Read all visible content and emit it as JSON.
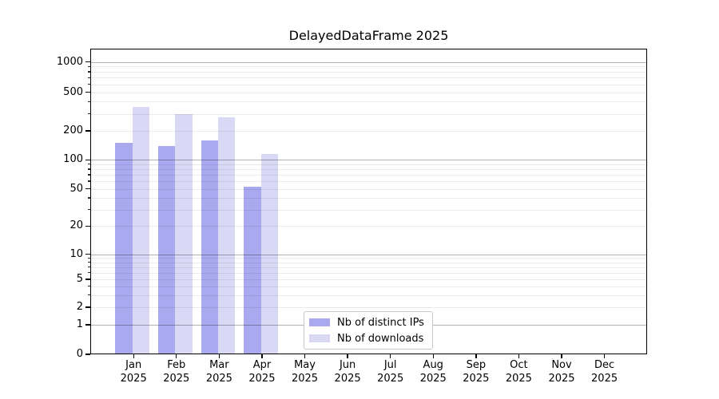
{
  "figure": {
    "title": "DelayedDataFrame 2025"
  },
  "chart_data": {
    "type": "bar",
    "title": "DelayedDataFrame 2025",
    "x": [
      "Jan",
      "Feb",
      "Mar",
      "Apr",
      "May",
      "Jun",
      "Jul",
      "Aug",
      "Sep",
      "Oct",
      "Nov",
      "Dec"
    ],
    "x_sublabel": "2025",
    "series": [
      {
        "name": "Nb of distinct IPs",
        "color": "#a9a9f0",
        "values": [
          150,
          140,
          160,
          52,
          null,
          null,
          null,
          null,
          null,
          null,
          null,
          null
        ]
      },
      {
        "name": "Nb of downloads",
        "color": "#d9d9f6",
        "values": [
          350,
          295,
          275,
          115,
          null,
          null,
          null,
          null,
          null,
          null,
          null,
          null
        ]
      }
    ],
    "y_ticks": [
      0,
      1,
      2,
      5,
      10,
      20,
      50,
      100,
      200,
      500,
      1000
    ],
    "y_major_ticks": [
      1,
      10,
      100,
      1000
    ],
    "y_scale": "asinh-log-like (linear segment between 0 and 1)",
    "ylim": [
      0,
      1200
    ],
    "grid": {
      "orientation": "horizontal",
      "major": true,
      "minor": true,
      "drawn_above_bars": true
    },
    "legend": {
      "position": "lower center",
      "bordered": true
    },
    "colors": {
      "major_grid": "rgba(0,0,0,0.30)",
      "minor_grid": "rgba(0,0,0,0.08)",
      "axis": "#000000",
      "background": "#ffffff"
    }
  }
}
